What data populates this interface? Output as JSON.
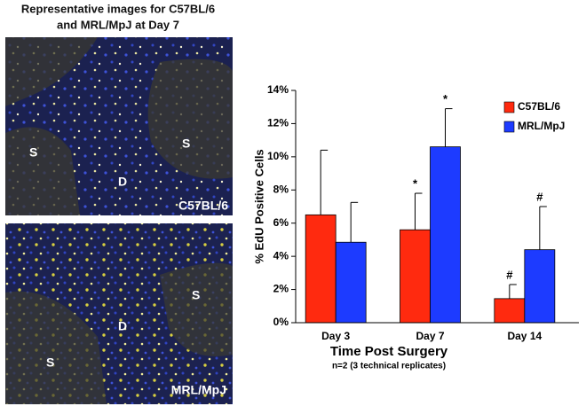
{
  "chart_data": {
    "type": "bar",
    "y_label": "% EdU Positive Cells",
    "x_label": "Time Post Surgery",
    "x_sublabel": "n=2 (3 technical replicates)",
    "categories": [
      "Day 3",
      "Day 7",
      "Day 14"
    ],
    "series": [
      {
        "name": "C57BL/6",
        "color": "#ff2a0f",
        "values": [
          6.5,
          5.6,
          1.45
        ],
        "errors": [
          3.9,
          2.2,
          0.85
        ],
        "markers": [
          null,
          "*",
          "#"
        ]
      },
      {
        "name": "MRL/MpJ",
        "color": "#1d3bff",
        "values": [
          4.85,
          10.6,
          4.4
        ],
        "errors": [
          2.4,
          2.3,
          2.6
        ],
        "markers": [
          null,
          "*",
          "#"
        ]
      }
    ],
    "ylim": [
      0,
      14
    ],
    "yticks": [
      {
        "value": 0,
        "label": "0%"
      },
      {
        "value": 2,
        "label": "2%"
      },
      {
        "value": 4,
        "label": "4%"
      },
      {
        "value": 6,
        "label": "6%"
      },
      {
        "value": 8,
        "label": "8%"
      },
      {
        "value": 10,
        "label": "10%"
      },
      {
        "value": 12,
        "label": "12%"
      },
      {
        "value": 14,
        "label": "14%"
      }
    ],
    "legend": "upper right"
  },
  "figure": {
    "title": [
      "Representative images for C57BL/6",
      "and MRL/MpJ at Day 7"
    ],
    "panels": [
      {
        "name": "C57BL/6",
        "labels": [
          "S",
          "D",
          "S"
        ]
      },
      {
        "name": "MRL/MpJ",
        "labels": [
          "D",
          "S",
          "S"
        ]
      }
    ]
  }
}
